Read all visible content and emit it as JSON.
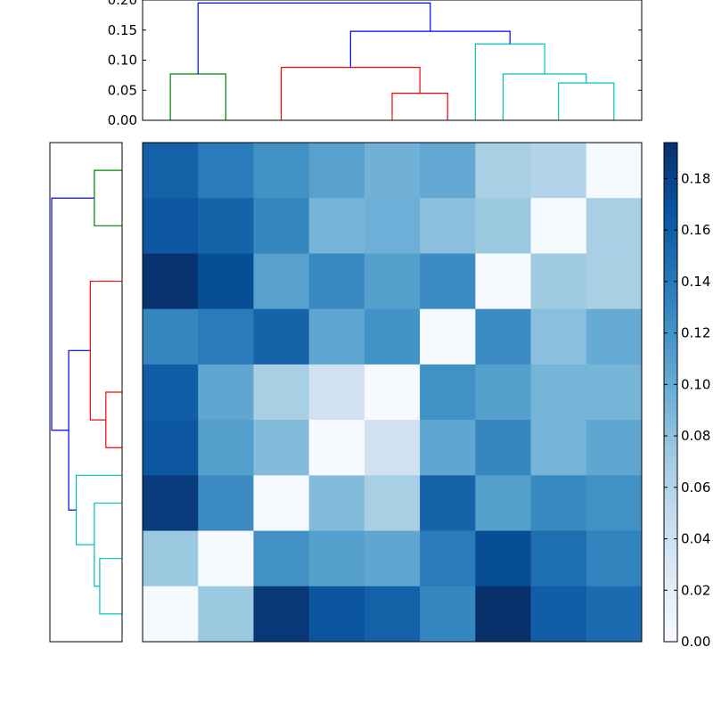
{
  "chart_data": {
    "type": "heatmap",
    "title": "",
    "colormap": "Blues",
    "matrix": [
      [
        0.158,
        0.138,
        0.122,
        0.108,
        0.094,
        0.102,
        0.066,
        0.06,
        0.002
      ],
      [
        0.165,
        0.156,
        0.13,
        0.092,
        0.096,
        0.082,
        0.074,
        0.001,
        0.066
      ],
      [
        0.192,
        0.172,
        0.108,
        0.128,
        0.11,
        0.126,
        0.001,
        0.072,
        0.066
      ],
      [
        0.13,
        0.138,
        0.156,
        0.104,
        0.12,
        0.002,
        0.126,
        0.082,
        0.1
      ],
      [
        0.16,
        0.104,
        0.066,
        0.038,
        0.001,
        0.122,
        0.11,
        0.092,
        0.092
      ],
      [
        0.165,
        0.11,
        0.086,
        0.001,
        0.038,
        0.104,
        0.13,
        0.092,
        0.104
      ],
      [
        0.185,
        0.126,
        0.001,
        0.086,
        0.066,
        0.156,
        0.11,
        0.128,
        0.122
      ],
      [
        0.074,
        0.001,
        0.122,
        0.11,
        0.104,
        0.138,
        0.172,
        0.148,
        0.132
      ],
      [
        0.002,
        0.074,
        0.188,
        0.166,
        0.158,
        0.13,
        0.194,
        0.16,
        0.15
      ]
    ],
    "colorbar": {
      "min": 0.0,
      "max": 0.194,
      "ticks": [
        "0.00",
        "0.02",
        "0.04",
        "0.06",
        "0.08",
        "0.10",
        "0.12",
        "0.14",
        "0.16",
        "0.18"
      ]
    },
    "top_dendrogram": {
      "ylim": [
        0.0,
        0.2
      ],
      "yticks": [
        "0.00",
        "0.05",
        "0.10",
        "0.15",
        "0.20"
      ],
      "links": [
        {
          "l": [
            0,
            1
          ],
          "h": 0.077,
          "color": "#008000",
          "lo": [
            0,
            0
          ]
        },
        {
          "l": [
            4,
            5
          ],
          "h": 0.045,
          "color": "#ff0000",
          "lo": [
            0,
            0
          ]
        },
        {
          "l": [
            2,
            4.5
          ],
          "h": 0.088,
          "color": "#ff0000",
          "lo": [
            0,
            0.045
          ]
        },
        {
          "l": [
            7,
            8
          ],
          "h": 0.062,
          "color": "#00bfbf",
          "lo": [
            0,
            0
          ]
        },
        {
          "l": [
            6,
            7.5
          ],
          "h": 0.077,
          "color": "#00bfbf",
          "lo": [
            0,
            0.062
          ]
        },
        {
          "l": [
            5.5,
            6.75
          ],
          "h": 0.127,
          "color": "#00bfbf",
          "lo": [
            0,
            0.077
          ]
        },
        {
          "l": [
            3.25,
            6.125
          ],
          "h": 0.148,
          "color": "#0000ff",
          "lo": [
            0.088,
            0.127
          ]
        },
        {
          "l": [
            0.5,
            4.6875
          ],
          "h": 0.195,
          "color": "#0000ff",
          "lo": [
            0.077,
            0.148
          ]
        }
      ]
    },
    "left_dendrogram": {
      "links": [
        {
          "r": [
            0,
            1
          ],
          "h": 0.077,
          "color": "#008000",
          "lo": [
            0,
            0
          ]
        },
        {
          "r": [
            4,
            5
          ],
          "h": 0.045,
          "color": "#ff0000",
          "lo": [
            0,
            0
          ]
        },
        {
          "r": [
            2,
            4.5
          ],
          "h": 0.088,
          "color": "#ff0000",
          "lo": [
            0,
            0.045
          ]
        },
        {
          "r": [
            7,
            8
          ],
          "h": 0.062,
          "color": "#00bfbf",
          "lo": [
            0,
            0
          ]
        },
        {
          "r": [
            6,
            7.5
          ],
          "h": 0.077,
          "color": "#00bfbf",
          "lo": [
            0,
            0.062
          ]
        },
        {
          "r": [
            5.5,
            6.75
          ],
          "h": 0.127,
          "color": "#00bfbf",
          "lo": [
            0,
            0.077
          ]
        },
        {
          "r": [
            3.25,
            6.125
          ],
          "h": 0.148,
          "color": "#0000ff",
          "lo": [
            0.088,
            0.127
          ]
        },
        {
          "r": [
            0.5,
            4.6875
          ],
          "h": 0.195,
          "color": "#0000ff",
          "lo": [
            0.077,
            0.148
          ]
        }
      ]
    }
  }
}
